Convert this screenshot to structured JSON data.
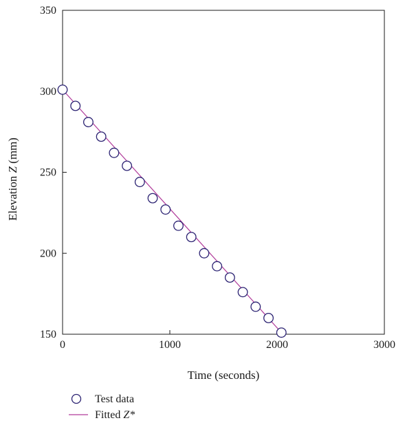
{
  "chart_data": {
    "type": "scatter",
    "xlabel": "Time (seconds)",
    "ylabel_prefix": "Elevation ",
    "ylabel_var": "Z",
    "ylabel_suffix": " (mm)",
    "xlim": [
      0,
      3000
    ],
    "ylim": [
      150,
      350
    ],
    "xticks": [
      "0",
      "1000",
      "2000",
      "3000"
    ],
    "yticks": [
      "150",
      "200",
      "250",
      "300",
      "350"
    ],
    "grid": false,
    "legend_position": "bottom-left",
    "series": [
      {
        "name": "Test data",
        "marker": "open-circle",
        "color": "#2b2272",
        "points": [
          {
            "x": 0,
            "y": 301
          },
          {
            "x": 120,
            "y": 291
          },
          {
            "x": 240,
            "y": 281
          },
          {
            "x": 360,
            "y": 272
          },
          {
            "x": 480,
            "y": 262
          },
          {
            "x": 600,
            "y": 254
          },
          {
            "x": 720,
            "y": 244
          },
          {
            "x": 840,
            "y": 234
          },
          {
            "x": 960,
            "y": 227
          },
          {
            "x": 1080,
            "y": 217
          },
          {
            "x": 1200,
            "y": 210
          },
          {
            "x": 1320,
            "y": 200
          },
          {
            "x": 1440,
            "y": 192
          },
          {
            "x": 1560,
            "y": 185
          },
          {
            "x": 1680,
            "y": 176
          },
          {
            "x": 1800,
            "y": 167
          },
          {
            "x": 1920,
            "y": 160
          },
          {
            "x": 2040,
            "y": 151
          }
        ]
      },
      {
        "name_prefix": "Fitted ",
        "name_var": "Z*",
        "marker": "line",
        "color": "#b03a9a",
        "points": [
          {
            "x": 0,
            "y": 301
          },
          {
            "x": 2040,
            "y": 151
          }
        ]
      }
    ]
  },
  "legend": {
    "test_data_label": "Test data",
    "fitted_label_prefix": "Fitted ",
    "fitted_label_var": "Z*"
  }
}
